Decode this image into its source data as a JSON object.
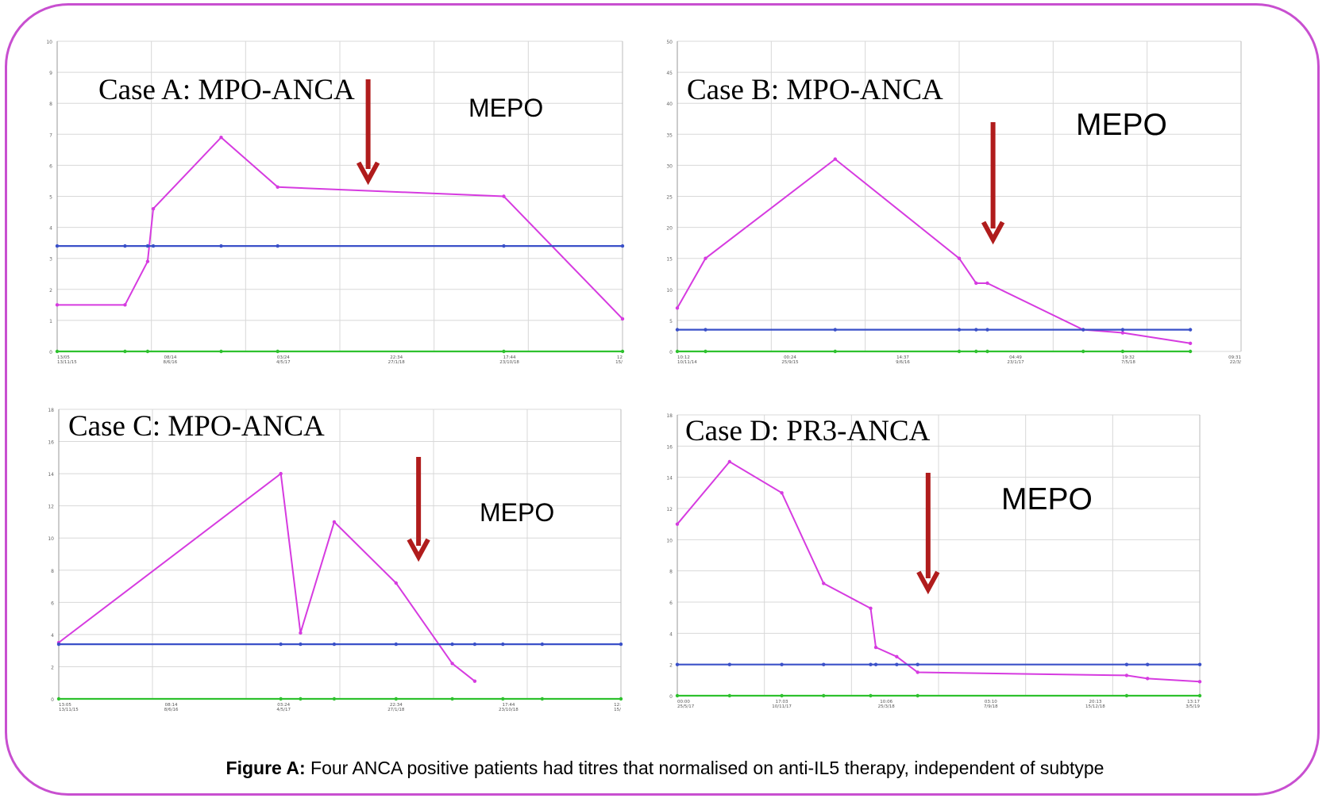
{
  "caption": {
    "bold": "Figure A:",
    "text": " Four ANCA positive patients had titres that normalised on anti-IL5 therapy, independent of subtype"
  },
  "colors": {
    "frame": "#c84fd0",
    "titre_line": "#d63be0",
    "threshold_line": "#3a50c8",
    "baseline_line": "#2ec12e",
    "arrow": "#b01c1c",
    "grid": "#d8d8d8"
  },
  "chart_data": [
    {
      "type": "line",
      "title": "Case A: MPO-ANCA",
      "annotation": "MEPO",
      "ylim": [
        0,
        10
      ],
      "y_ticks": [
        "0",
        "1",
        "2",
        "3",
        "4",
        "5",
        "6",
        "7",
        "8",
        "9",
        "10"
      ],
      "x_ticks": [
        "13/05\n13/11/15",
        "08/14\n8/6/16",
        "03/24\n4/5/17",
        "22:34\n27/1/18",
        "17:44\n23/10/18",
        "12\n15/"
      ],
      "series": [
        {
          "role": "titre",
          "points": [
            [
              0,
              1.5
            ],
            [
              0.12,
              1.5
            ],
            [
              0.16,
              2.9
            ],
            [
              0.17,
              4.6
            ],
            [
              0.29,
              6.9
            ],
            [
              0.39,
              5.3
            ],
            [
              0.79,
              5.0
            ],
            [
              1.0,
              1.05
            ]
          ]
        },
        {
          "role": "threshold",
          "points": [
            [
              0,
              3.4
            ],
            [
              0.12,
              3.4
            ],
            [
              0.16,
              3.4
            ],
            [
              0.17,
              3.4
            ],
            [
              0.29,
              3.4
            ],
            [
              0.39,
              3.4
            ],
            [
              0.79,
              3.4
            ],
            [
              1.0,
              3.4
            ]
          ]
        },
        {
          "role": "baseline",
          "points": [
            [
              0,
              0
            ],
            [
              0.12,
              0
            ],
            [
              0.16,
              0
            ],
            [
              0.29,
              0
            ],
            [
              0.39,
              0
            ],
            [
              0.79,
              0
            ],
            [
              1.0,
              0
            ]
          ]
        }
      ],
      "mepo_x": 0.55
    },
    {
      "type": "line",
      "title": "Case B: MPO-ANCA",
      "annotation": "MEPO",
      "ylim": [
        0,
        50
      ],
      "y_ticks": [
        "0",
        "5",
        "10",
        "15",
        "20",
        "25",
        "30",
        "35",
        "40",
        "45",
        "50"
      ],
      "x_ticks": [
        "10:12\n10/11/14",
        "00:24\n25/9/15",
        "14:37\n9/6/16",
        "04:49\n23/1/17",
        "19:32\n7/5/18",
        "09:31\n22/3/"
      ],
      "series": [
        {
          "role": "titre",
          "points": [
            [
              0,
              7
            ],
            [
              0.05,
              15
            ],
            [
              0.28,
              31
            ],
            [
              0.5,
              15
            ],
            [
              0.53,
              11
            ],
            [
              0.55,
              11
            ],
            [
              0.72,
              3.5
            ],
            [
              0.79,
              3
            ],
            [
              0.91,
              1.3
            ]
          ]
        },
        {
          "role": "threshold",
          "points": [
            [
              0,
              3.5
            ],
            [
              0.05,
              3.5
            ],
            [
              0.28,
              3.5
            ],
            [
              0.5,
              3.5
            ],
            [
              0.53,
              3.5
            ],
            [
              0.55,
              3.5
            ],
            [
              0.72,
              3.5
            ],
            [
              0.79,
              3.5
            ],
            [
              0.91,
              3.5
            ]
          ]
        },
        {
          "role": "baseline",
          "points": [
            [
              0,
              0
            ],
            [
              0.05,
              0
            ],
            [
              0.28,
              0
            ],
            [
              0.5,
              0
            ],
            [
              0.53,
              0
            ],
            [
              0.55,
              0
            ],
            [
              0.72,
              0
            ],
            [
              0.79,
              0
            ],
            [
              0.91,
              0
            ]
          ]
        }
      ],
      "mepo_x": 0.56
    },
    {
      "type": "line",
      "title": "Case C: MPO-ANCA",
      "annotation": "MEPO",
      "ylim": [
        0,
        18
      ],
      "y_ticks": [
        "0",
        "2",
        "4",
        "6",
        "8",
        "10",
        "12",
        "14",
        "16",
        "18"
      ],
      "x_ticks": [
        "13:05\n13/11/15",
        "08:14\n8/6/16",
        "03:24\n4/5/17",
        "22:34\n27/1/18",
        "17:44\n23/10/18",
        "12:\n15/"
      ],
      "series": [
        {
          "role": "titre",
          "points": [
            [
              0,
              3.5
            ],
            [
              0.395,
              14
            ],
            [
              0.43,
              4.1
            ],
            [
              0.49,
              11
            ],
            [
              0.6,
              7.2
            ],
            [
              0.7,
              2.2
            ],
            [
              0.74,
              1.1
            ]
          ]
        },
        {
          "role": "threshold",
          "points": [
            [
              0,
              3.4
            ],
            [
              0.395,
              3.4
            ],
            [
              0.43,
              3.4
            ],
            [
              0.49,
              3.4
            ],
            [
              0.6,
              3.4
            ],
            [
              0.7,
              3.4
            ],
            [
              0.74,
              3.4
            ],
            [
              0.79,
              3.4
            ],
            [
              0.86,
              3.4
            ],
            [
              1.0,
              3.4
            ]
          ]
        },
        {
          "role": "baseline",
          "points": [
            [
              0,
              0
            ],
            [
              0.395,
              0
            ],
            [
              0.43,
              0
            ],
            [
              0.49,
              0
            ],
            [
              0.6,
              0
            ],
            [
              0.7,
              0
            ],
            [
              0.79,
              0
            ],
            [
              0.86,
              0
            ],
            [
              1.0,
              0
            ]
          ]
        }
      ],
      "mepo_x": 0.64
    },
    {
      "type": "line",
      "title": "Case D: PR3-ANCA",
      "annotation": "MEPO",
      "ylim": [
        0,
        18
      ],
      "y_ticks": [
        "0",
        "2",
        "4",
        "6",
        "8",
        "10",
        "12",
        "14",
        "16",
        "18"
      ],
      "x_ticks": [
        "00:00\n25/5/17",
        "17:03\n10/11/17",
        "10:06\n25/3/18",
        "03:10\n7/9/18",
        "20:13\n15/12/18",
        "13:17\n3/5/19"
      ],
      "series": [
        {
          "role": "titre",
          "points": [
            [
              0,
              11
            ],
            [
              0.1,
              15
            ],
            [
              0.2,
              13
            ],
            [
              0.28,
              7.2
            ],
            [
              0.37,
              5.6
            ],
            [
              0.38,
              3.1
            ],
            [
              0.42,
              2.5
            ],
            [
              0.46,
              1.5
            ],
            [
              0.86,
              1.3
            ],
            [
              0.9,
              1.1
            ],
            [
              1.0,
              0.9
            ]
          ]
        },
        {
          "role": "threshold",
          "points": [
            [
              0,
              2
            ],
            [
              0.1,
              2
            ],
            [
              0.2,
              2
            ],
            [
              0.28,
              2
            ],
            [
              0.37,
              2
            ],
            [
              0.38,
              2
            ],
            [
              0.42,
              2
            ],
            [
              0.46,
              2
            ],
            [
              0.86,
              2
            ],
            [
              0.9,
              2
            ],
            [
              1.0,
              2
            ]
          ]
        },
        {
          "role": "baseline",
          "points": [
            [
              0,
              0
            ],
            [
              0.1,
              0
            ],
            [
              0.2,
              0
            ],
            [
              0.28,
              0
            ],
            [
              0.37,
              0
            ],
            [
              0.46,
              0
            ],
            [
              0.86,
              0
            ],
            [
              1.0,
              0
            ]
          ]
        }
      ],
      "mepo_x": 0.48
    }
  ]
}
